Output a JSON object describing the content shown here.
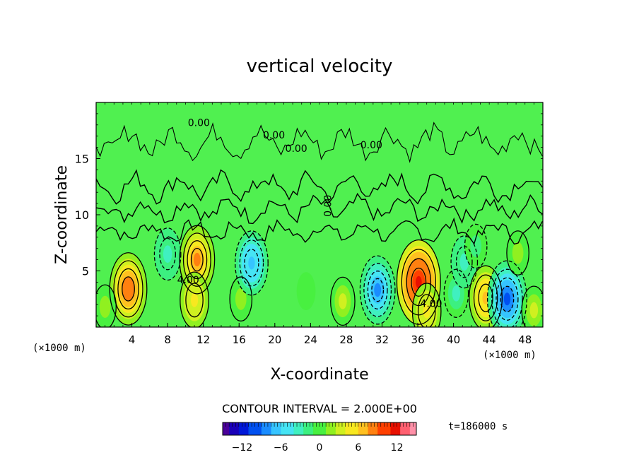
{
  "chart_data": {
    "type": "heatmap",
    "title": "vertical velocity",
    "xlabel": "X-coordinate",
    "ylabel": "Z-coordinate",
    "x_unit": "(×1000 m)",
    "x_unit_right": "(×1000 m)",
    "x_ticks": [
      "4",
      "8",
      "12",
      "16",
      "20",
      "24",
      "28",
      "32",
      "36",
      "40",
      "44",
      "48"
    ],
    "y_ticks": [
      "5",
      "10",
      "15"
    ],
    "xlim": [
      0,
      50
    ],
    "ylim": [
      0,
      20
    ],
    "contour_interval_text": "CONTOUR INTERVAL = 2.000E+00",
    "time_text": "t=186000 s",
    "colorbar": {
      "range": [
        -15,
        15
      ],
      "ticks": [
        "−12",
        "−6",
        "0",
        "6",
        "12"
      ],
      "colors": [
        "#4a0099",
        "#1a00b8",
        "#0018d8",
        "#0050f0",
        "#1a8cff",
        "#36c4ff",
        "#46e4f4",
        "#40f0c0",
        "#3cf080",
        "#48f040",
        "#90f020",
        "#d0f020",
        "#f8e820",
        "#ffc020",
        "#ff8010",
        "#ff4000",
        "#e81000",
        "#ff6070",
        "#ff90a8"
      ]
    },
    "contour_labels": [
      "0.00",
      "0.00",
      "0.00",
      "0.00",
      "0.00",
      "4.00",
      "4.00"
    ],
    "cells": [
      {
        "x": 3.6,
        "z": 3.4,
        "w": 9
      },
      {
        "x": 11.3,
        "z": 6.0,
        "w": 8
      },
      {
        "x": 11.0,
        "z": 2.4,
        "w": 5
      },
      {
        "x": 16.2,
        "z": 2.5,
        "w": 2
      },
      {
        "x": 17.4,
        "z": 5.7,
        "w": -7
      },
      {
        "x": 8.0,
        "z": 6.5,
        "w": -4
      },
      {
        "x": 1.0,
        "z": 1.8,
        "w": 2
      },
      {
        "x": 27.6,
        "z": 2.3,
        "w": 3
      },
      {
        "x": 31.5,
        "z": 3.3,
        "w": -8
      },
      {
        "x": 36.1,
        "z": 4.0,
        "w": 12
      },
      {
        "x": 37.0,
        "z": 1.4,
        "w": 5
      },
      {
        "x": 40.3,
        "z": 3.0,
        "w": -3
      },
      {
        "x": 41.2,
        "z": 5.8,
        "w": -4
      },
      {
        "x": 43.6,
        "z": 2.6,
        "w": 7
      },
      {
        "x": 46.0,
        "z": 2.5,
        "w": -10
      },
      {
        "x": 47.2,
        "z": 6.6,
        "w": 2
      },
      {
        "x": 49.0,
        "z": 1.5,
        "w": 3
      },
      {
        "x": 42.5,
        "z": 7.2,
        "w": -2
      },
      {
        "x": 23.5,
        "z": 3.2,
        "w": 0.5
      }
    ]
  }
}
